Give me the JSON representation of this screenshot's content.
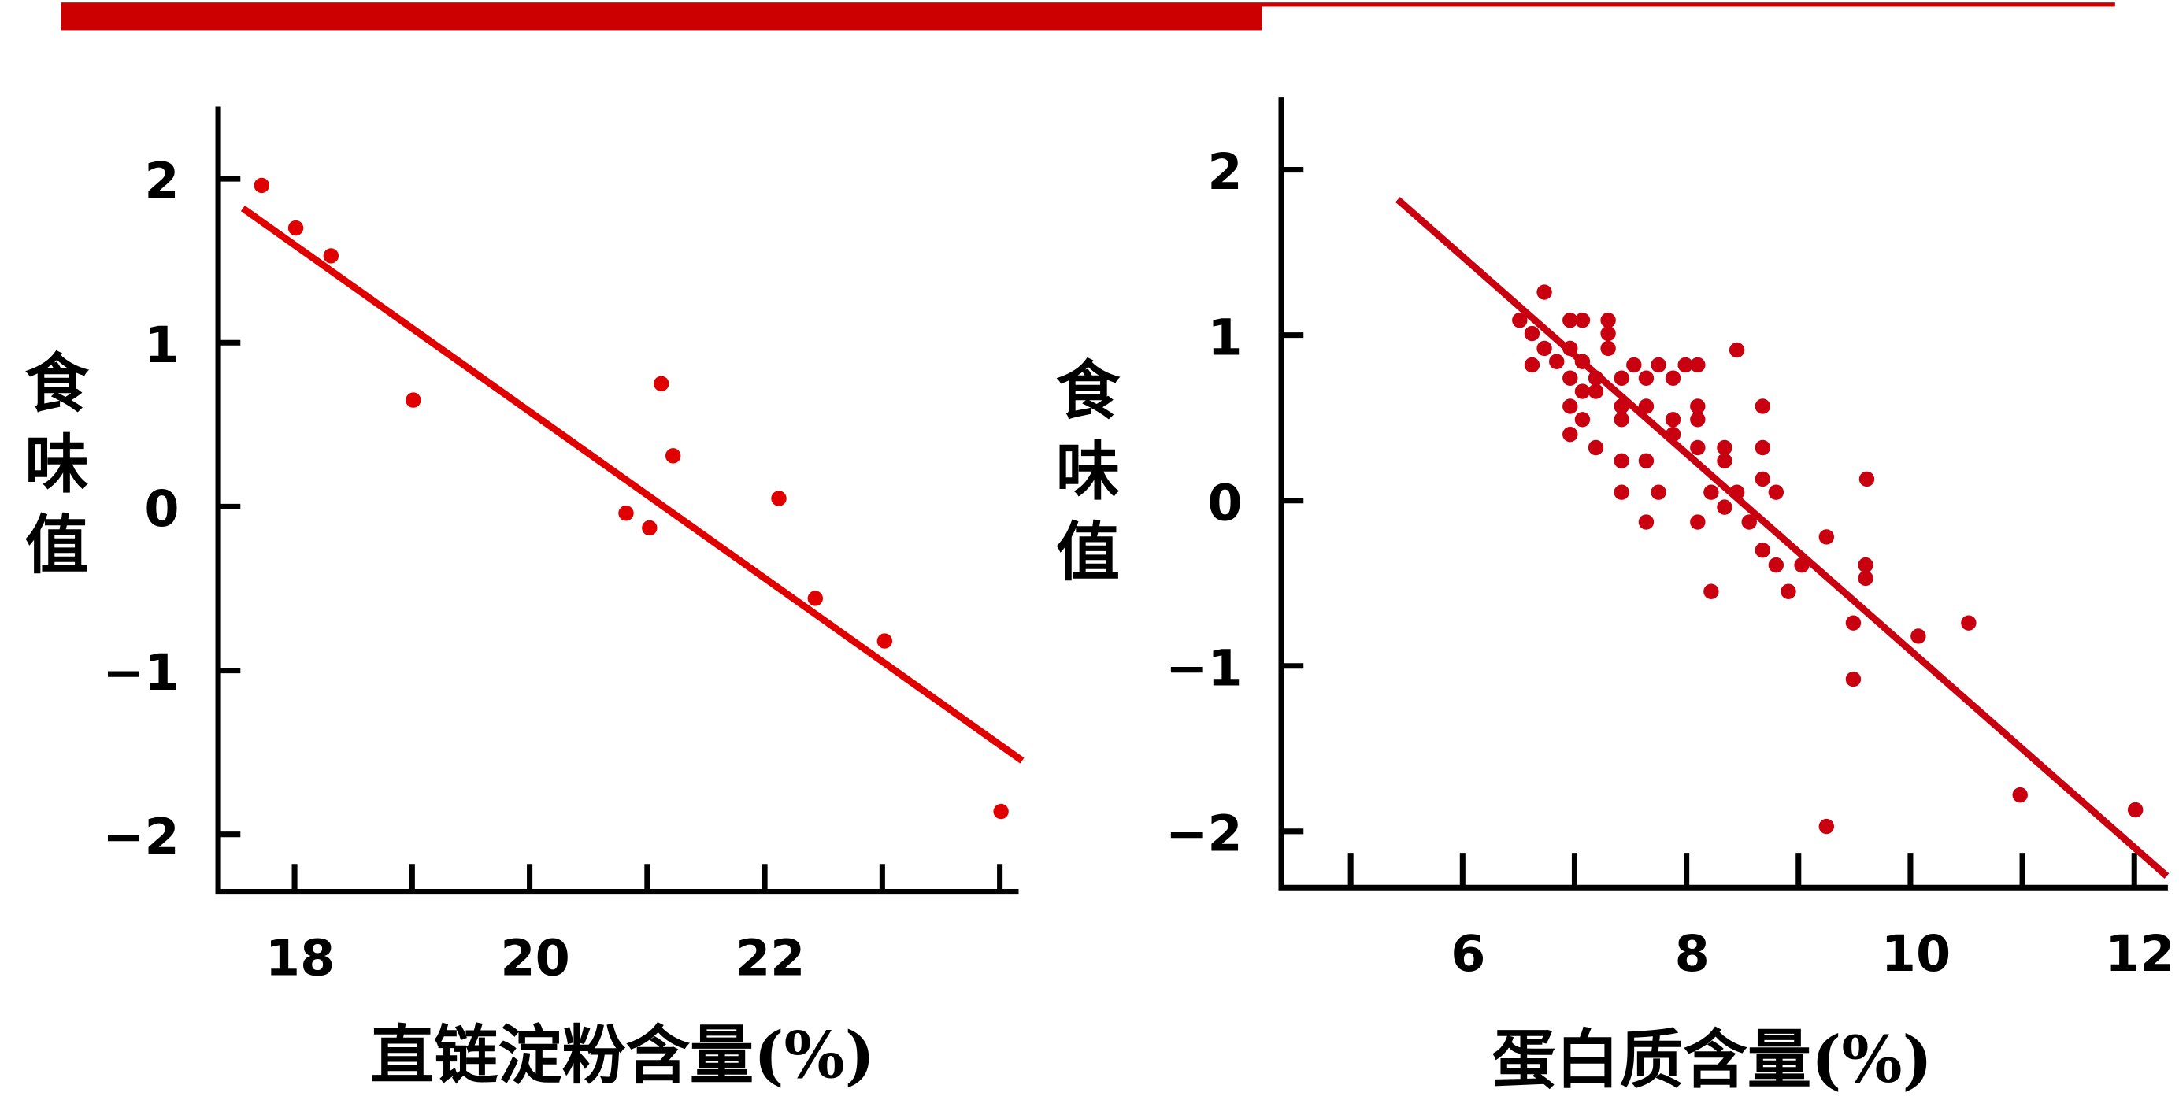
{
  "chart_data": [
    {
      "type": "scatter",
      "xlabel": "直链淀粉含量(%)",
      "ylabel": "食味值",
      "color": "#e00000",
      "x": [
        17.72,
        18.01,
        18.31,
        19.01,
        20.82,
        21.02,
        21.12,
        21.22,
        22.12,
        22.43,
        23.02,
        24.01
      ],
      "y": [
        1.96,
        1.7,
        1.53,
        0.65,
        -0.04,
        -0.13,
        0.75,
        0.31,
        0.05,
        -0.56,
        -0.82,
        -1.86
      ],
      "fit": {
        "x": [
          17.56,
          24.19
        ],
        "y": [
          1.82,
          -1.55
        ]
      },
      "xlim": [
        17.35,
        24.16
      ],
      "ylim": [
        -2.35,
        2.44
      ],
      "xticks": [
        18,
        20,
        22
      ],
      "xminorticks": [
        19,
        21,
        23,
        24
      ],
      "yticks": [
        2,
        1,
        0,
        {
          "value": -1,
          "label": "−1"
        },
        {
          "value": -2,
          "label": "−2"
        }
      ]
    },
    {
      "type": "scatter",
      "xlabel": "蛋白质含量(%)",
      "ylabel": "食味值",
      "color": "#c80010",
      "x": [
        6.51,
        6.62,
        6.73,
        6.62,
        6.73,
        6.84,
        6.96,
        7.07,
        6.96,
        7.07,
        6.96,
        7.19,
        7.3,
        7.3,
        7.3,
        7.07,
        7.19,
        6.96,
        7.42,
        7.53,
        7.64,
        7.75,
        7.88,
        7.99,
        8.1,
        6.96,
        7.19,
        7.07,
        7.42,
        7.42,
        7.64,
        7.88,
        8.1,
        8.1,
        8.34,
        8.45,
        8.68,
        7.42,
        7.64,
        7.88,
        8.1,
        8.34,
        8.68,
        7.42,
        7.75,
        8.22,
        8.45,
        8.8,
        8.68,
        7.64,
        8.1,
        8.34,
        8.56,
        8.68,
        8.8,
        9.03,
        9.25,
        8.91,
        8.22,
        9.61,
        9.6,
        9.6,
        9.49,
        10.07,
        10.52,
        9.49,
        9.25,
        10.98,
        12.01
      ],
      "y": [
        1.09,
        1.01,
        1.26,
        0.82,
        0.92,
        0.84,
        1.09,
        1.09,
        0.92,
        0.84,
        0.74,
        0.74,
        1.09,
        1.01,
        0.92,
        0.66,
        0.66,
        0.57,
        0.74,
        0.82,
        0.74,
        0.82,
        0.74,
        0.82,
        0.82,
        0.4,
        0.32,
        0.49,
        0.57,
        0.49,
        0.57,
        0.49,
        0.57,
        0.49,
        0.32,
        0.91,
        0.57,
        0.24,
        0.24,
        0.4,
        0.32,
        0.24,
        0.32,
        0.05,
        0.05,
        0.05,
        0.05,
        0.05,
        0.13,
        -0.13,
        -0.13,
        -0.04,
        -0.13,
        -0.3,
        -0.39,
        -0.39,
        -0.22,
        -0.55,
        -0.55,
        0.13,
        -0.39,
        -0.47,
        -0.74,
        -0.82,
        -0.74,
        -1.08,
        -1.97,
        -1.78,
        -1.87
      ],
      "fit": {
        "x": [
          5.42,
          12.29
        ],
        "y": [
          1.82,
          -2.27
        ]
      },
      "xlim": [
        4.38,
        12.3
      ],
      "ylim": [
        -2.34,
        2.44
      ],
      "xticks": [
        6,
        8,
        10,
        12
      ],
      "xminorticks": [
        5,
        7,
        9,
        11
      ],
      "yticks": [
        2,
        1,
        0,
        {
          "value": -1,
          "label": "−1"
        },
        {
          "value": -2,
          "label": "−2"
        }
      ]
    }
  ]
}
